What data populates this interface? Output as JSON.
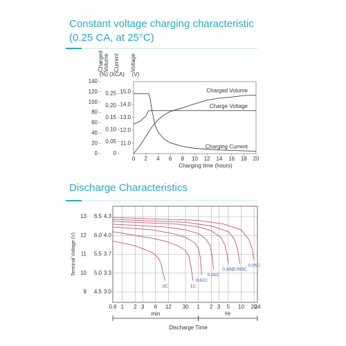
{
  "chart_data": [
    {
      "type": "line",
      "title": "Constant voltage charging characteristic",
      "subtitle": "(0.25 CA, at 25°C)",
      "xlabel": "Charging time (hours)",
      "xlim": [
        0,
        20
      ],
      "xticks": [
        0,
        2,
        4,
        6,
        8,
        10,
        12,
        14,
        16,
        18,
        20
      ],
      "ylabel": "Charged Volume",
      "yunit": "(%)",
      "ylim": [
        0,
        140
      ],
      "yticks": [
        0,
        20,
        40,
        60,
        80,
        100,
        120,
        140
      ],
      "y2label": "Current",
      "y2unit": "(XCA)",
      "y2lim": [
        0,
        0.3
      ],
      "y2ticks": [
        0,
        0.05,
        {
          "value": 0.1,
          "label": "0.10"
        },
        0.15,
        {
          "value": 0.2,
          "label": "0.20"
        },
        0.25
      ],
      "y3label": "Voltage",
      "y3unit": "(V)",
      "y3lim": [
        10.2,
        15.8
      ],
      "y3ticks": [
        {
          "value": 11,
          "label": "11.0"
        },
        {
          "value": 12,
          "label": "12.0"
        },
        {
          "value": 13,
          "label": "13.0"
        },
        {
          "value": 14,
          "label": "14.0"
        },
        {
          "value": 15,
          "label": "15.0"
        }
      ],
      "grid": false,
      "series": [
        {
          "name": "Charged Volume",
          "color": "#444444",
          "axis": "y",
          "x": [
            0,
            1,
            2,
            3,
            4,
            5,
            6,
            8,
            10,
            12,
            14,
            16,
            18,
            20
          ],
          "values": [
            0,
            15,
            33,
            52,
            66,
            75,
            82,
            89,
            97,
            104,
            108,
            110,
            113,
            114
          ]
        },
        {
          "name": "Charge Voltage",
          "color": "#444444",
          "axis": "y3",
          "x": [
            0,
            1,
            2,
            2.4,
            2.6,
            4,
            20
          ],
          "values": [
            12.5,
            12.7,
            13.1,
            13.5,
            13.55,
            13.55,
            13.55
          ]
        },
        {
          "name": "Charging Current",
          "color": "#444444",
          "axis": "y2",
          "x": [
            0,
            2.5,
            2.7,
            3,
            3.5,
            4,
            5,
            6,
            8,
            10,
            14,
            20
          ],
          "values": [
            0.25,
            0.25,
            0.23,
            0.18,
            0.12,
            0.09,
            0.06,
            0.045,
            0.03,
            0.022,
            0.015,
            0.01
          ]
        }
      ]
    },
    {
      "type": "line",
      "title": "Discharge Characteristics",
      "xlabel": "Discharge Time",
      "xscale": "log",
      "xlim": [
        0.6,
        1440
      ],
      "xticks": [
        0.6,
        1,
        2,
        3,
        6,
        12,
        30,
        {
          "value": 60,
          "label": "1"
        },
        {
          "value": 120,
          "label": "2"
        },
        {
          "value": 180,
          "label": "3"
        },
        {
          "value": 300,
          "label": "5"
        },
        {
          "value": 600,
          "label": "10"
        },
        {
          "value": 1200,
          "label": "20"
        },
        {
          "value": 1440,
          "label": "24"
        }
      ],
      "xgroups": [
        {
          "label": "min",
          "range": [
            0.6,
            60
          ]
        },
        {
          "label": "Hr",
          "range": [
            60,
            1440
          ]
        }
      ],
      "ylabel": "Terminal Voltage (V)",
      "ylim": [
        8.45,
        13.55
      ],
      "yticks": [
        9,
        10,
        11,
        12,
        13
      ],
      "y2lim": [
        4.225,
        6.775
      ],
      "y2ticks": [
        4.5,
        {
          "value": 5,
          "label": "5.0"
        },
        5.5,
        {
          "value": 6,
          "label": "6.0"
        },
        6.5
      ],
      "y3lim": [
        2.817,
        4.517
      ],
      "y3ticks": [
        {
          "value": 3,
          "label": "3.0"
        },
        {
          "value": 3.333,
          "label": "3.3"
        },
        {
          "value": 3.667,
          "label": "3.7"
        },
        {
          "value": 4,
          "label": "4.0"
        },
        {
          "value": 4.333,
          "label": "4.3"
        }
      ],
      "grid": true,
      "label_color": "#3b5ba5",
      "series": [
        {
          "name": "3C",
          "color": "#c0557a",
          "axis": "y",
          "x": [
            0.6,
            1,
            2,
            3,
            5,
            7,
            8,
            9,
            10
          ],
          "values": [
            11.7,
            11.6,
            11.45,
            11.3,
            11.1,
            10.8,
            10.5,
            10.0,
            9.6
          ]
        },
        {
          "name": "1C",
          "color": "#c0557a",
          "axis": "y",
          "x": [
            0.6,
            2,
            5,
            10,
            20,
            30,
            36,
            40,
            45
          ],
          "values": [
            12.2,
            12.0,
            11.85,
            11.7,
            11.45,
            11.2,
            10.9,
            10.4,
            9.6
          ]
        },
        {
          "name": "0.62C",
          "color": "#c0557a",
          "axis": "y",
          "x": [
            0.6,
            5,
            15,
            30,
            50,
            60,
            67,
            72
          ],
          "values": [
            12.45,
            12.3,
            12.1,
            11.9,
            11.6,
            11.3,
            10.8,
            9.9
          ]
        },
        {
          "name": "0.35C",
          "color": "#c0557a",
          "axis": "y",
          "x": [
            0.6,
            10,
            30,
            60,
            90,
            110,
            125,
            135
          ],
          "values": [
            12.6,
            12.45,
            12.3,
            12.1,
            11.8,
            11.5,
            11.0,
            10.2
          ]
        },
        {
          "name": "0.16C",
          "color": "#c0557a",
          "axis": "y",
          "x": [
            0.6,
            20,
            60,
            120,
            200,
            250,
            280,
            300
          ],
          "values": [
            12.75,
            12.6,
            12.45,
            12.25,
            11.9,
            11.5,
            11.0,
            10.5
          ]
        },
        {
          "name": "0.093C",
          "color": "#c0557a",
          "axis": "y",
          "x": [
            0.6,
            30,
            120,
            300,
            420,
            500,
            560
          ],
          "values": [
            12.85,
            12.7,
            12.5,
            12.2,
            11.8,
            11.2,
            10.5
          ]
        },
        {
          "name": "0.05C",
          "color": "#c0557a",
          "axis": "y",
          "x": [
            0.6,
            60,
            240,
            600,
            900,
            1080,
            1200
          ],
          "values": [
            12.95,
            12.8,
            12.6,
            12.3,
            11.8,
            11.3,
            10.7
          ]
        }
      ]
    }
  ]
}
